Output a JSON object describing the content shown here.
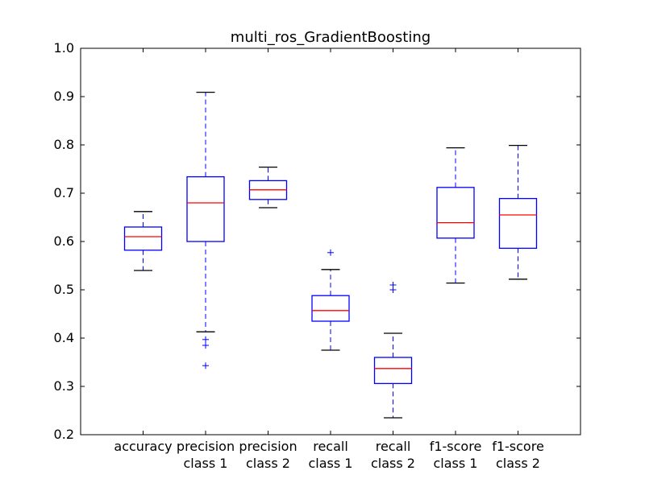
{
  "chart_data": {
    "type": "box",
    "title": "multi_ros_GradientBoosting",
    "xlabel": "",
    "ylabel": "",
    "ylim": [
      0.2,
      1.0
    ],
    "yticks": [
      "0.2",
      "0.3",
      "0.4",
      "0.5",
      "0.6",
      "0.7",
      "0.8",
      "0.9",
      "1.0"
    ],
    "grid": false,
    "categories": [
      [
        "accuracy"
      ],
      [
        "precision",
        "class 1"
      ],
      [
        "precision",
        "class 2"
      ],
      [
        "recall",
        "class 1"
      ],
      [
        "recall",
        "class 2"
      ],
      [
        "f1-score",
        "class 1"
      ],
      [
        "f1-score",
        "class 2"
      ]
    ],
    "boxes": [
      {
        "whisker_low": 0.54,
        "q1": 0.582,
        "median": 0.61,
        "q3": 0.63,
        "whisker_high": 0.662,
        "outliers": []
      },
      {
        "whisker_low": 0.413,
        "q1": 0.6,
        "median": 0.68,
        "q3": 0.734,
        "whisker_high": 0.909,
        "outliers": [
          0.397,
          0.385,
          0.343
        ]
      },
      {
        "whisker_low": 0.67,
        "q1": 0.687,
        "median": 0.707,
        "q3": 0.726,
        "whisker_high": 0.754,
        "outliers": []
      },
      {
        "whisker_low": 0.375,
        "q1": 0.435,
        "median": 0.457,
        "q3": 0.488,
        "whisker_high": 0.542,
        "outliers": [
          0.577
        ]
      },
      {
        "whisker_low": 0.235,
        "q1": 0.306,
        "median": 0.337,
        "q3": 0.36,
        "whisker_high": 0.41,
        "outliers": [
          0.51,
          0.5
        ]
      },
      {
        "whisker_low": 0.514,
        "q1": 0.607,
        "median": 0.639,
        "q3": 0.712,
        "whisker_high": 0.794,
        "outliers": []
      },
      {
        "whisker_low": 0.522,
        "q1": 0.586,
        "median": 0.655,
        "q3": 0.689,
        "whisker_high": 0.799,
        "outliers": []
      }
    ],
    "colors": {
      "box": "#0000ff",
      "median": "#ff0000",
      "whisker": "#0000ff",
      "cap": "#000000",
      "outlier": "#0000ff",
      "axes": "#000000"
    }
  }
}
